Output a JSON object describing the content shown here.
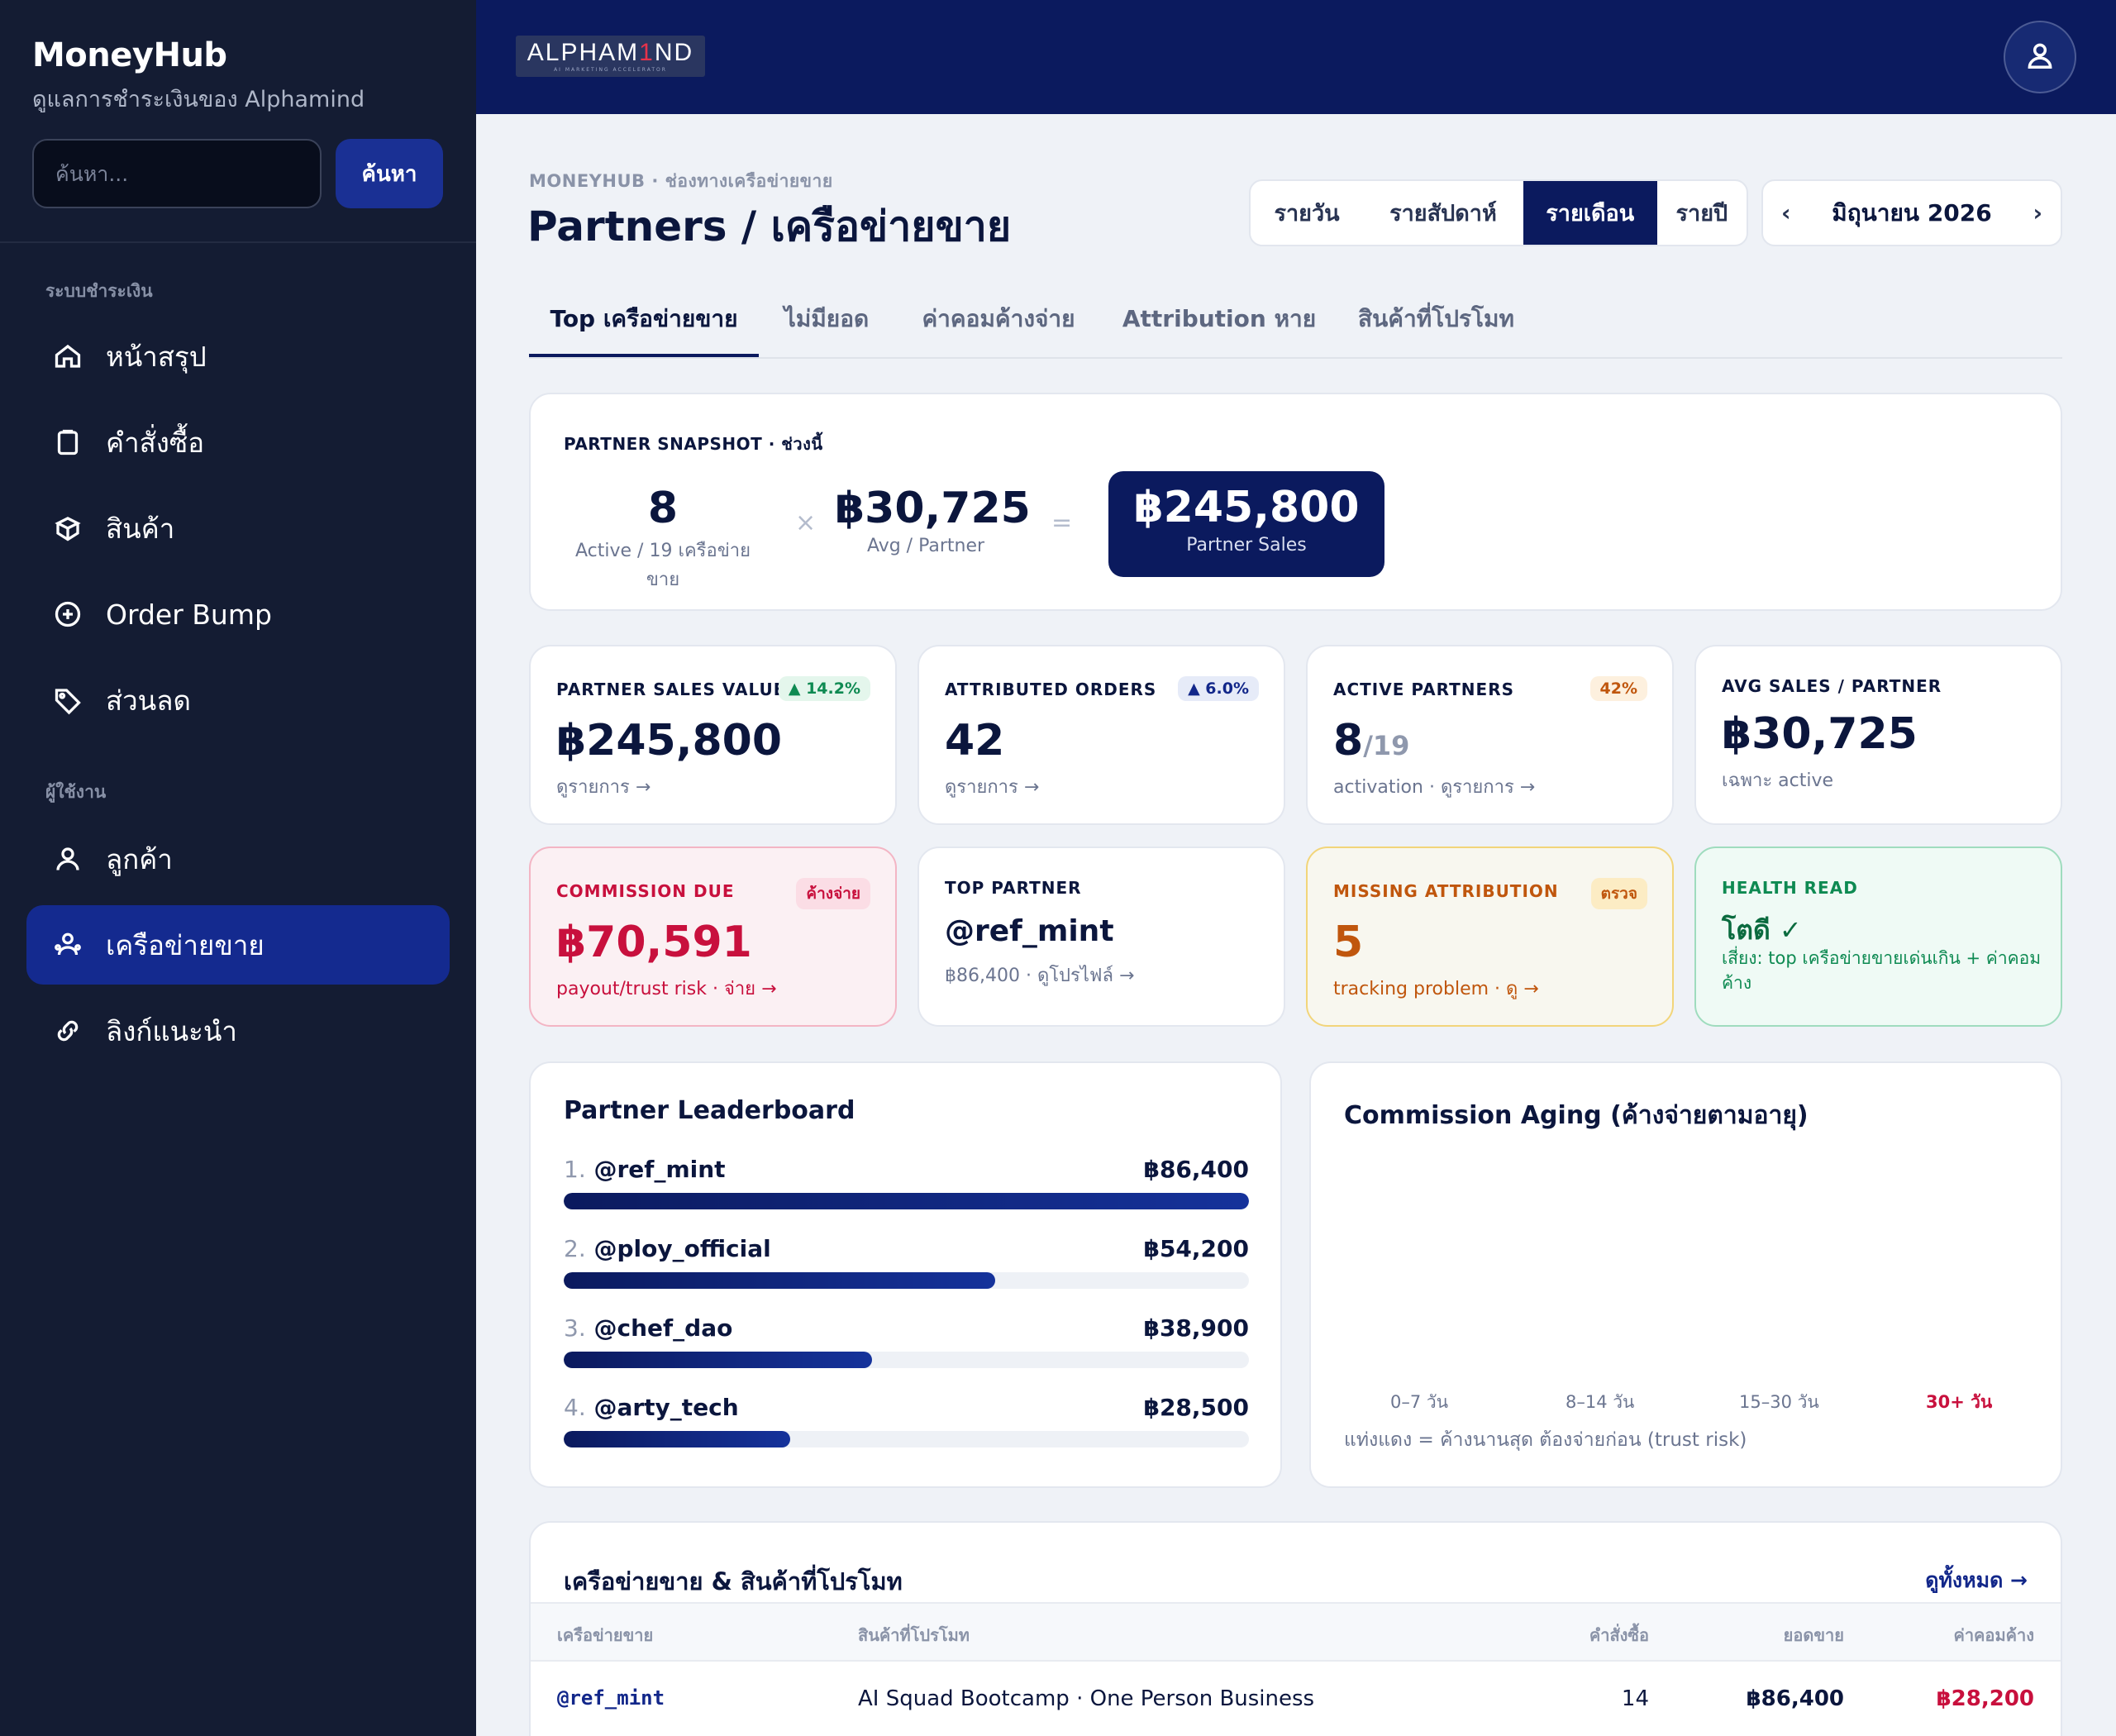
{
  "sidebar": {
    "brand": "MoneyHub",
    "subtitle": "ดูแลการชำระเงินของ Alphamind",
    "search_placeholder": "ค้นหา...",
    "search_button": "ค้นหา",
    "section_payment": "ระบบชำระเงิน",
    "section_users": "ผู้ใช้งาน",
    "items": [
      {
        "label": "หน้าสรุป",
        "icon": "home-icon"
      },
      {
        "label": "คำสั่งซื้อ",
        "icon": "clipboard-icon"
      },
      {
        "label": "สินค้า",
        "icon": "box-icon"
      },
      {
        "label": "Order Bump",
        "icon": "plus-circle-icon"
      },
      {
        "label": "ส่วนลด",
        "icon": "tag-icon"
      },
      {
        "label": "ลูกค้า",
        "icon": "user-icon"
      },
      {
        "label": "เครือข่ายขาย",
        "icon": "users-icon",
        "active": true
      },
      {
        "label": "ลิงก์แนะนำ",
        "icon": "link-icon"
      }
    ]
  },
  "topbar": {
    "logo_text": "ALPHAMIND",
    "logo_tagline": "AI MARKETING ACCELERATOR"
  },
  "header": {
    "breadcrumb": "MONEYHUB · ช่องทางเครือข่ายขาย",
    "title": "Partners / เครือข่ายขาย",
    "periods": [
      "รายวัน",
      "รายสัปดาห์",
      "รายเดือน",
      "รายปี"
    ],
    "active_period": "รายเดือน",
    "month": "มิถุนายน 2026",
    "prev": "‹",
    "next": "›"
  },
  "tabs": [
    "Top เครือข่ายขาย",
    "ไม่มียอด",
    "ค่าคอมค้างจ่าย",
    "Attribution หาย",
    "สินค้าที่โปรโมท"
  ],
  "snapshot": {
    "label": "PARTNER SNAPSHOT · ช่วงนี้",
    "active_value": "8",
    "active_caption": "Active / 19 เครือข่ายขาย",
    "times": "×",
    "avg_value": "฿30,725",
    "avg_caption": "Avg / Partner",
    "equals": "=",
    "total_value": "฿245,800",
    "total_caption": "Partner Sales"
  },
  "kpis": [
    {
      "label": "PARTNER SALES VALUE",
      "badge": "▲ 14.2%",
      "value": "฿245,800",
      "sub": "ดูรายการ →"
    },
    {
      "label": "ATTRIBUTED ORDERS",
      "badge": "▲ 6.0%",
      "value": "42",
      "sub": "ดูรายการ →"
    },
    {
      "label": "ACTIVE PARTNERS",
      "badge": "42%",
      "value": "8",
      "value_small": "/19",
      "sub": "activation · ดูรายการ →"
    },
    {
      "label": "AVG SALES / PARTNER",
      "value": "฿30,725",
      "sub": "เฉพาะ active"
    }
  ],
  "alerts": [
    {
      "label": "COMMISSION DUE",
      "badge": "ค้างจ่าย",
      "value": "฿70,591",
      "sub": "payout/trust risk · จ่าย →"
    },
    {
      "label": "TOP PARTNER",
      "value": "@ref_mint",
      "sub": "฿86,400 · ดูโปรไฟล์ →"
    },
    {
      "label": "MISSING ATTRIBUTION",
      "badge": "ตรวจ",
      "value": "5",
      "sub": "tracking problem · ดู →"
    },
    {
      "label": "HEALTH READ",
      "value": "โตดี ✓",
      "sub": "เสี่ยง: top เครือข่ายขายเด่นเกิน + ค่าคอมค้าง"
    }
  ],
  "leaderboard": {
    "title": "Partner Leaderboard",
    "rows": [
      {
        "rank": "1.",
        "name": "@ref_mint",
        "amount": "฿86,400",
        "share": 1.0
      },
      {
        "rank": "2.",
        "name": "@ploy_official",
        "amount": "฿54,200",
        "share": 0.63
      },
      {
        "rank": "3.",
        "name": "@chef_dao",
        "amount": "฿38,900",
        "share": 0.45
      },
      {
        "rank": "4.",
        "name": "@arty_tech",
        "amount": "฿28,500",
        "share": 0.33
      }
    ]
  },
  "aging": {
    "title": "Commission Aging (ค้างจ่ายตามอายุ)",
    "buckets": [
      "0–7 วัน",
      "8–14 วัน",
      "15–30 วัน",
      "30+ วัน"
    ],
    "note": "แท่งแดง = ค้างนานสุด ต้องจ่ายก่อน (trust risk)"
  },
  "table": {
    "title": "เครือข่ายขาย & สินค้าที่โปรโมท",
    "view_all": "ดูทั้งหมด →",
    "columns": [
      "เครือข่ายขาย",
      "สินค้าที่โปรโมท",
      "คำสั่งซื้อ",
      "ยอดขาย",
      "ค่าคอมค้าง"
    ],
    "rows": [
      {
        "partner": "@ref_mint",
        "product": "AI Squad Bootcamp · One Person Business",
        "orders": "14",
        "sales": "฿86,400",
        "commission": "฿28,200"
      }
    ]
  },
  "colors": {
    "navy": "#0b1a5e",
    "sidebar": "#141c33",
    "green": "#0e8a52",
    "red": "#c8103d",
    "orange": "#c0560d"
  }
}
